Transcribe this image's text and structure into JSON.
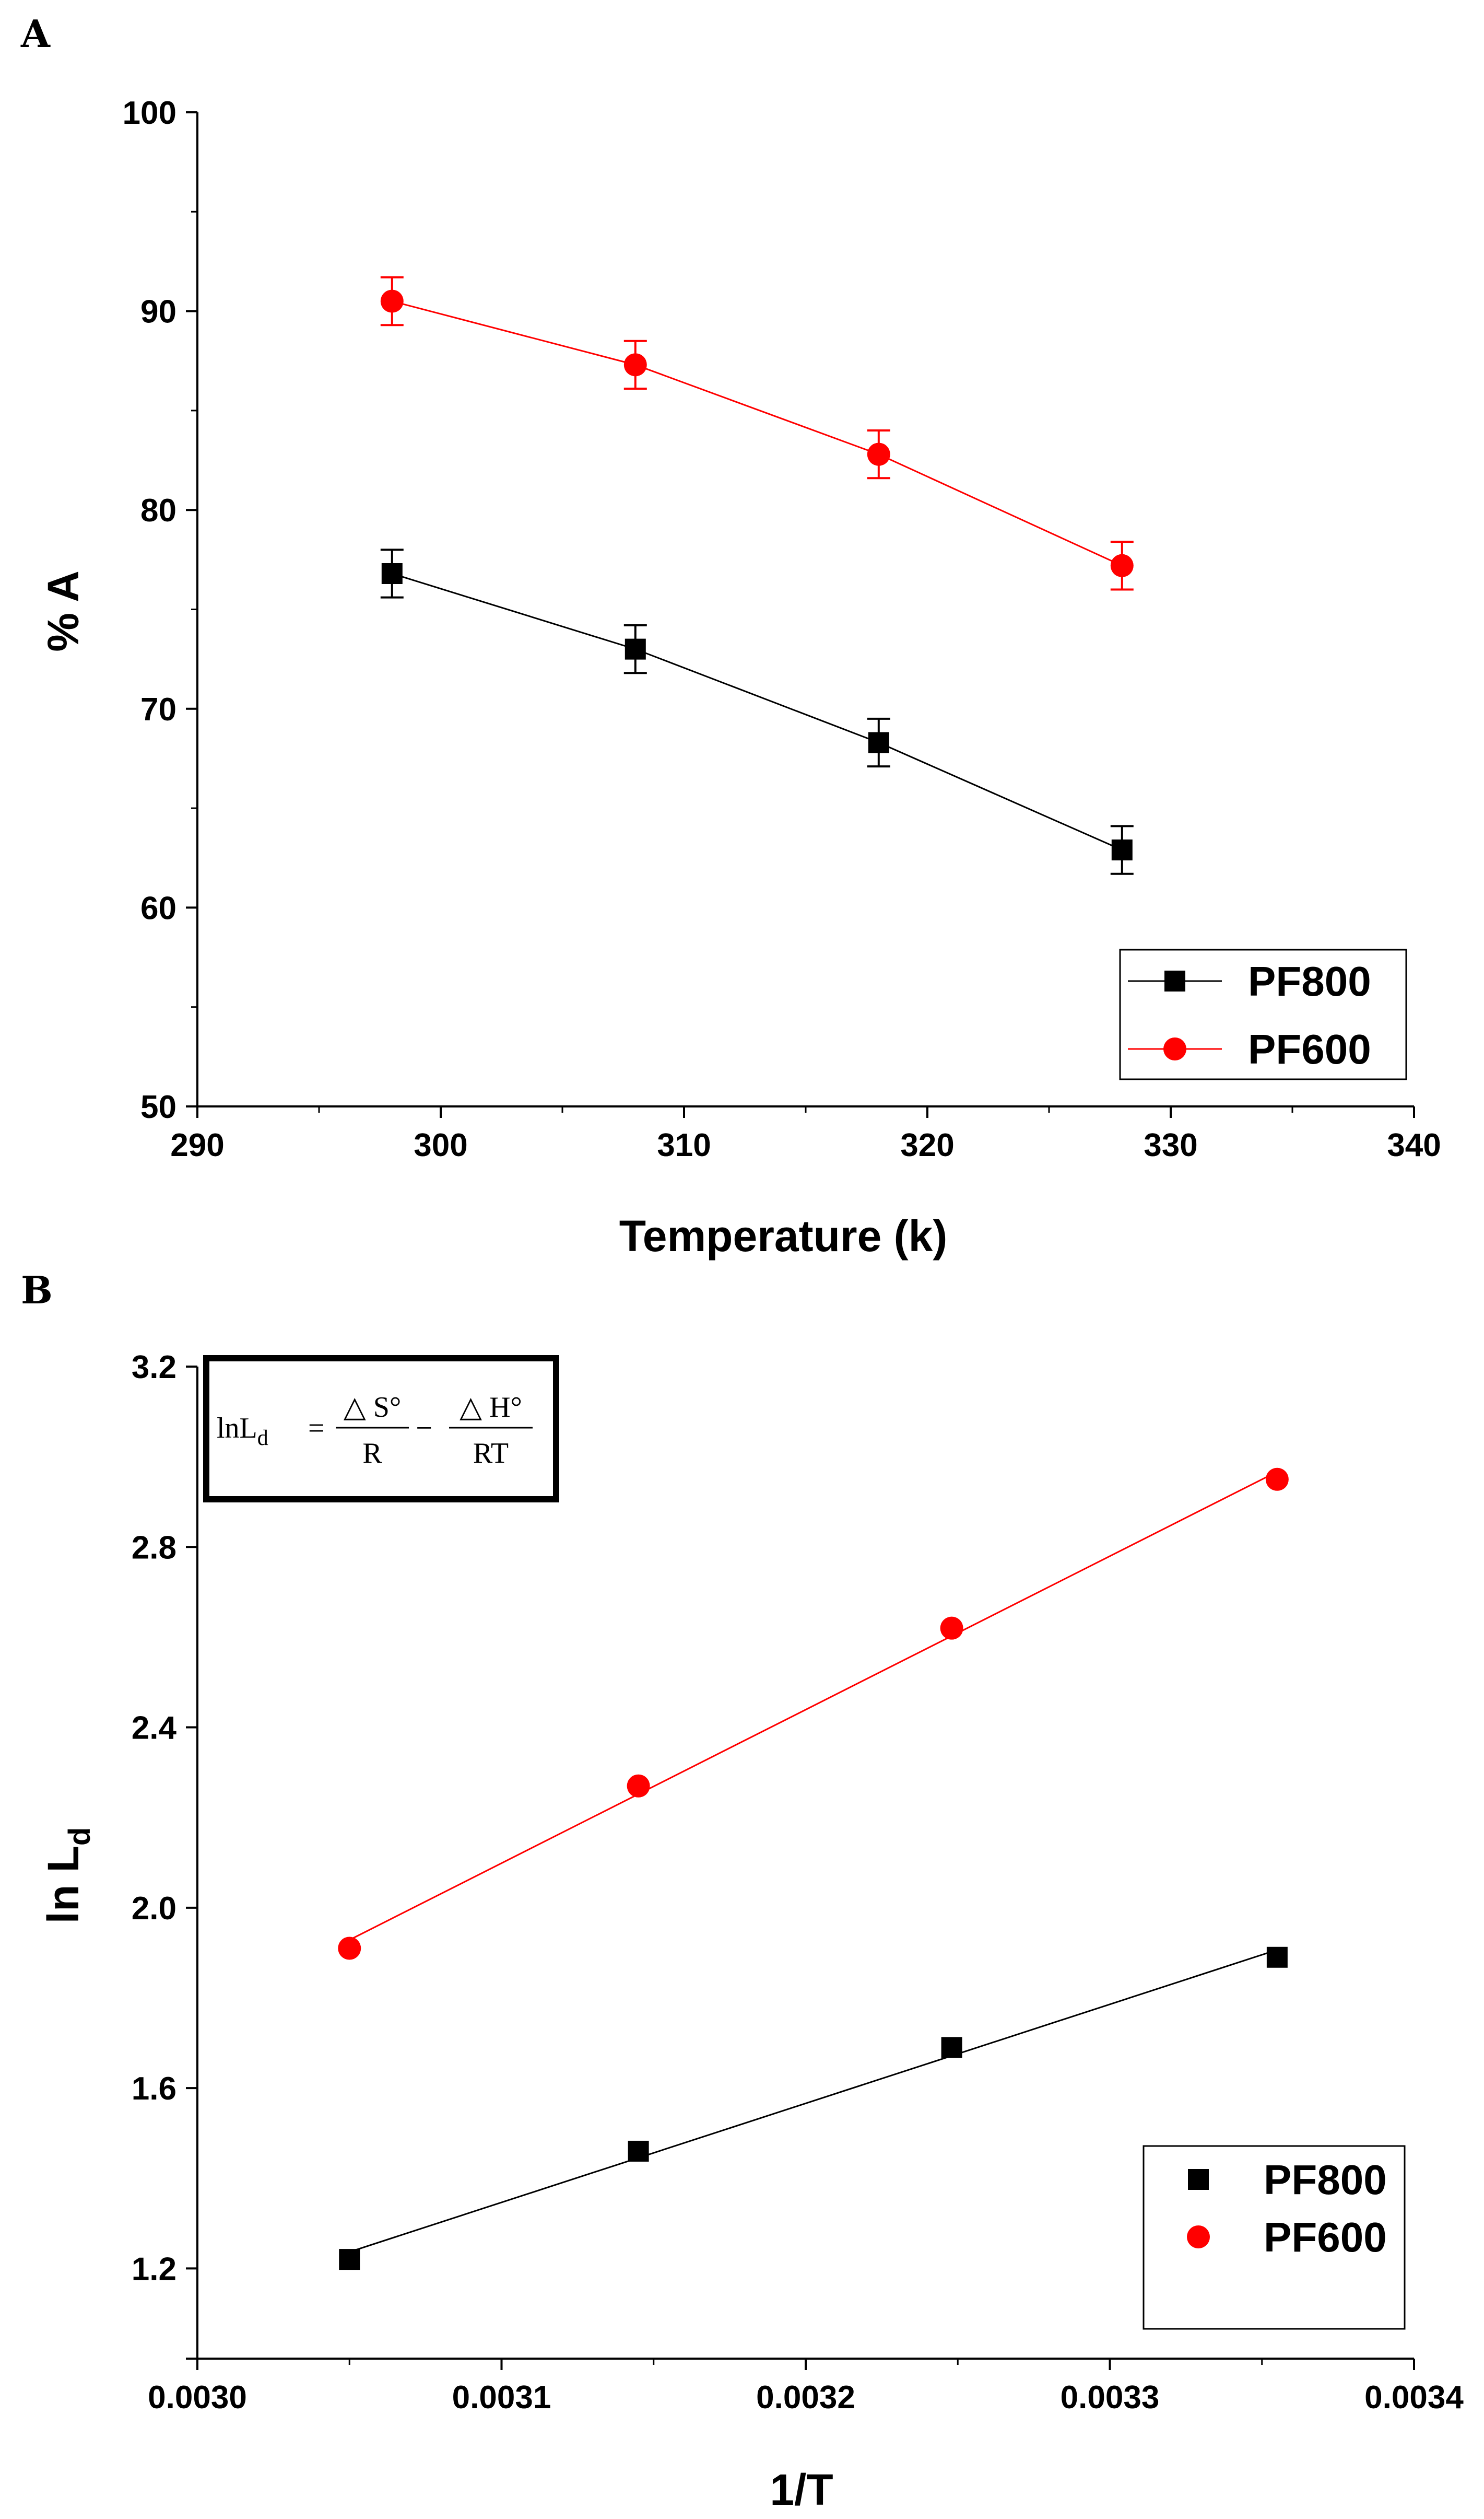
{
  "chart_data": [
    {
      "panel": "A",
      "type": "line",
      "xlabel": "Temperature (k)",
      "ylabel": "% A",
      "xlim": [
        290,
        340
      ],
      "ylim": [
        50,
        100
      ],
      "xticks": [
        "290",
        "300",
        "310",
        "320",
        "330",
        "340"
      ],
      "yticks": [
        "50",
        "60",
        "70",
        "80",
        "90",
        "100"
      ],
      "legend_position": "bottom-right",
      "series": [
        {
          "name": "PF800",
          "color": "#000000",
          "marker": "square",
          "x": [
            298,
            308,
            318,
            328
          ],
          "y": [
            76.8,
            73.0,
            68.3,
            62.9
          ],
          "error": [
            1.2,
            1.2,
            1.2,
            1.2
          ]
        },
        {
          "name": "PF600",
          "color": "#ff0000",
          "marker": "circle",
          "x": [
            298,
            308,
            318,
            328
          ],
          "y": [
            90.5,
            87.3,
            82.8,
            77.2
          ],
          "error": [
            1.2,
            1.2,
            1.2,
            1.2
          ]
        }
      ]
    },
    {
      "panel": "B",
      "type": "scatter",
      "xlabel": "1/T",
      "ylabel_main": "ln L",
      "ylabel_sub": "d",
      "xlim": [
        0.003,
        0.0034
      ],
      "ylim": [
        1.0,
        3.2
      ],
      "xticks": [
        "0.0030",
        "0.0031",
        "0.0032",
        "0.0033",
        "0.0034"
      ],
      "yticks": [
        "1.2",
        "1.6",
        "2.0",
        "2.4",
        "2.8",
        "3.2"
      ],
      "legend_position": "bottom-right",
      "equation": {
        "lhs": "lnL",
        "lhs_sub": "d",
        "equals": "=",
        "num1": "△ S°",
        "den1": "R",
        "minus": "−",
        "num2": "△ H°",
        "den2": "RT"
      },
      "series": [
        {
          "name": "PF800",
          "color": "#000000",
          "marker": "square",
          "x": [
            0.00305,
            0.003145,
            0.003248,
            0.003355
          ],
          "y": [
            1.22,
            1.46,
            1.69,
            1.89
          ],
          "fit": true
        },
        {
          "name": "PF600",
          "color": "#ff0000",
          "marker": "circle",
          "x": [
            0.00305,
            0.003145,
            0.003248,
            0.003355
          ],
          "y": [
            1.91,
            2.27,
            2.62,
            2.95
          ],
          "fit": true
        }
      ]
    }
  ],
  "panel_labels": {
    "a": "A",
    "b": "B"
  }
}
